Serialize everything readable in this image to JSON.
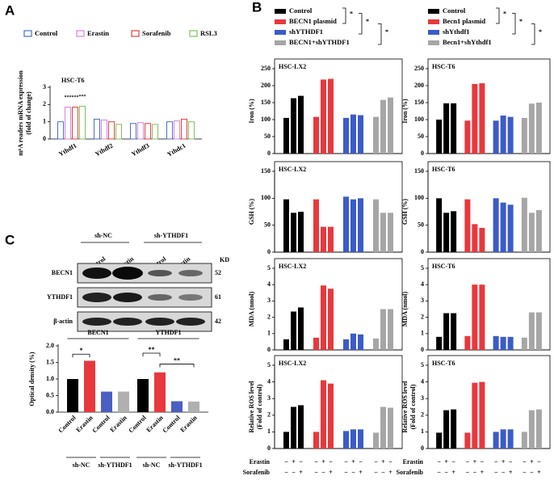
{
  "panel_labels": [
    "A",
    "B",
    "C"
  ],
  "treatments": [
    {
      "name": "Erastin",
      "signs": [
        "−",
        "+",
        "−",
        "−",
        "+",
        "−",
        "−",
        "+",
        "−",
        "−",
        "+",
        "−"
      ]
    },
    {
      "name": "Sorafenib",
      "signs": [
        "−",
        "−",
        "+",
        "−",
        "−",
        "+",
        "−",
        "−",
        "+",
        "−",
        "−",
        "+"
      ]
    }
  ],
  "blot": {
    "groups": [
      "sh-NC",
      "sh-YTHDF1"
    ],
    "lanes": [
      "Control",
      "Erastin",
      "Control",
      "Erastin"
    ],
    "kd_label": "KD",
    "rows": [
      {
        "protein": "BECN1",
        "kd": "52"
      },
      {
        "protein": "YTHDF1",
        "kd": "61"
      },
      {
        "protein": "β-actin",
        "kd": "42"
      }
    ]
  },
  "chart_data": [
    {
      "type": "bar",
      "bar_style": "outline",
      "title": "HSC-T6",
      "ylabel": [
        "m⁶A readers mRNA expression",
        "(fold of change)"
      ],
      "categories": [
        "Ythdf1",
        "Ythdf2",
        "Ythdf3",
        "Ythdc1"
      ],
      "series": [
        {
          "name": "Control",
          "color": "#4a6fc0",
          "values": [
            1.0,
            1.15,
            0.9,
            1.0
          ]
        },
        {
          "name": "Erastin",
          "color": "#d783d9",
          "values": [
            1.85,
            1.1,
            0.95,
            1.05
          ]
        },
        {
          "name": "Sorafenib",
          "color": "#e0403f",
          "values": [
            1.85,
            1.0,
            0.9,
            1.15
          ]
        },
        {
          "name": "RSL3",
          "color": "#7cc35a",
          "values": [
            1.9,
            0.85,
            0.85,
            1.0
          ]
        }
      ],
      "ylim": [
        0,
        3
      ],
      "yticks": [
        0,
        1,
        2,
        3
      ],
      "annotations": [
        "***",
        "***",
        "***"
      ]
    },
    {
      "type": "bar",
      "title": "HSC-LX2",
      "ylabel": "Iron (%)",
      "legend_annotations": [
        "*",
        "*",
        "*"
      ],
      "series": [
        {
          "name": "Control",
          "color": "#000000",
          "values": [
            105,
            163,
            170
          ]
        },
        {
          "name": "BECN1 plasmid",
          "color": "#e8383d",
          "values": [
            108,
            218,
            220
          ]
        },
        {
          "name": "shYTHDF1",
          "color": "#3b5bc8",
          "values": [
            105,
            115,
            113
          ]
        },
        {
          "name": "BECN1+shYTHDF1",
          "color": "#a6a6a6",
          "values": [
            108,
            158,
            165
          ]
        }
      ],
      "ylim": [
        0,
        250
      ],
      "yticks": [
        0,
        50,
        100,
        150,
        200,
        250
      ]
    },
    {
      "type": "bar",
      "title": "HSC-LX2",
      "ylabel": "GSH (%)",
      "series": [
        {
          "color": "#000000",
          "values": [
            98,
            73,
            75
          ]
        },
        {
          "color": "#e8383d",
          "values": [
            98,
            47,
            47
          ]
        },
        {
          "color": "#3b5bc8",
          "values": [
            103,
            98,
            100
          ]
        },
        {
          "color": "#a6a6a6",
          "values": [
            98,
            73,
            73
          ]
        }
      ],
      "ylim": [
        0,
        150
      ],
      "yticks": [
        0,
        50,
        100,
        150
      ]
    },
    {
      "type": "bar",
      "title": "HSC-LX2",
      "ylabel": "MDA (nmol)",
      "series": [
        {
          "color": "#000000",
          "values": [
            0.65,
            2.35,
            2.6
          ]
        },
        {
          "color": "#e8383d",
          "values": [
            0.75,
            3.95,
            3.75
          ]
        },
        {
          "color": "#3b5bc8",
          "values": [
            0.65,
            1.0,
            0.95
          ]
        },
        {
          "color": "#a6a6a6",
          "values": [
            0.7,
            2.5,
            2.5
          ]
        }
      ],
      "ylim": [
        0,
        5
      ],
      "yticks": [
        0,
        1,
        2,
        3,
        4,
        5
      ]
    },
    {
      "type": "bar",
      "title": "HSC-LX2",
      "ylabel": [
        "Relative ROS level",
        "(Fold of control)"
      ],
      "series": [
        {
          "color": "#000000",
          "values": [
            1.0,
            2.5,
            2.6
          ]
        },
        {
          "color": "#e8383d",
          "values": [
            1.0,
            4.1,
            3.9
          ]
        },
        {
          "color": "#3b5bc8",
          "values": [
            1.05,
            1.15,
            1.15
          ]
        },
        {
          "color": "#a6a6a6",
          "values": [
            0.95,
            2.5,
            2.45
          ]
        }
      ],
      "ylim": [
        0,
        5
      ],
      "yticks": [
        0,
        1,
        2,
        3,
        4,
        5
      ]
    },
    {
      "type": "bar",
      "title": "HSC-T6",
      "ylabel": "Iron (%)",
      "legend_annotations": [
        "*",
        "*",
        "*"
      ],
      "series": [
        {
          "name": "Control",
          "color": "#000000",
          "values": [
            100,
            148,
            148
          ]
        },
        {
          "name": "Becn1 plasmid",
          "color": "#e8383d",
          "values": [
            97,
            205,
            207
          ]
        },
        {
          "name": "shYthdf1",
          "color": "#3b5bc8",
          "values": [
            97,
            112,
            108
          ]
        },
        {
          "name": "Becn1+shYthdf1",
          "color": "#a6a6a6",
          "values": [
            105,
            147,
            150
          ]
        }
      ],
      "ylim": [
        0,
        250
      ],
      "yticks": [
        0,
        50,
        100,
        150,
        200,
        250
      ]
    },
    {
      "type": "bar",
      "title": "HSC-T6",
      "ylabel": "GSH (%)",
      "series": [
        {
          "color": "#000000",
          "values": [
            100,
            73,
            76
          ]
        },
        {
          "color": "#e8383d",
          "values": [
            98,
            52,
            45
          ]
        },
        {
          "color": "#3b5bc8",
          "values": [
            100,
            92,
            88
          ]
        },
        {
          "color": "#a6a6a6",
          "values": [
            101,
            73,
            78
          ]
        }
      ],
      "ylim": [
        0,
        150
      ],
      "yticks": [
        0,
        50,
        100,
        150
      ]
    },
    {
      "type": "bar",
      "title": "HSC-T6",
      "ylabel": "MDA (nmol)",
      "series": [
        {
          "color": "#000000",
          "values": [
            0.8,
            2.25,
            2.25
          ]
        },
        {
          "color": "#e8383d",
          "values": [
            0.85,
            4.0,
            4.0
          ]
        },
        {
          "color": "#3b5bc8",
          "values": [
            0.85,
            0.8,
            0.8
          ]
        },
        {
          "color": "#a6a6a6",
          "values": [
            0.75,
            2.3,
            2.3
          ]
        }
      ],
      "ylim": [
        0,
        5
      ],
      "yticks": [
        0,
        1,
        2,
        3,
        4,
        5
      ]
    },
    {
      "type": "bar",
      "title": "HSC-T6",
      "ylabel": [
        "Relative ROS level",
        "(Fold of control)"
      ],
      "series": [
        {
          "color": "#000000",
          "values": [
            0.95,
            2.3,
            2.35
          ]
        },
        {
          "color": "#e8383d",
          "values": [
            0.95,
            3.95,
            4.0
          ]
        },
        {
          "color": "#3b5bc8",
          "values": [
            1.0,
            1.15,
            1.15
          ]
        },
        {
          "color": "#a6a6a6",
          "values": [
            1.0,
            2.3,
            2.35
          ]
        }
      ],
      "ylim": [
        0,
        5
      ],
      "yticks": [
        0,
        1,
        2,
        3,
        4,
        5
      ]
    },
    {
      "type": "bar",
      "ylabel": "Optical density (%)",
      "categories": [
        "BECN1",
        "YTHDF1"
      ],
      "subgroups": [
        "sh-NC",
        "sh-YTHDF1"
      ],
      "series": [
        {
          "name": "Control",
          "color": "#000000",
          "values": [
            1.0,
            1.0
          ]
        },
        {
          "name": "Erastin",
          "color": "#e8383d",
          "values": [
            1.55,
            1.2
          ]
        },
        {
          "name": "Control",
          "color": "#4a5fc1",
          "values": [
            0.62,
            0.33
          ]
        },
        {
          "name": "Erastin",
          "color": "#b0b0b0",
          "values": [
            0.62,
            0.32
          ]
        }
      ],
      "ylim": [
        0,
        2
      ],
      "yticks": [
        {
          "value": 0,
          "label": "0.0"
        },
        0.5,
        {
          "value": 1,
          "label": "1.0"
        },
        1.5,
        {
          "value": 2,
          "label": "2.0"
        }
      ],
      "annotations": [
        "*",
        "**",
        "**"
      ]
    }
  ]
}
